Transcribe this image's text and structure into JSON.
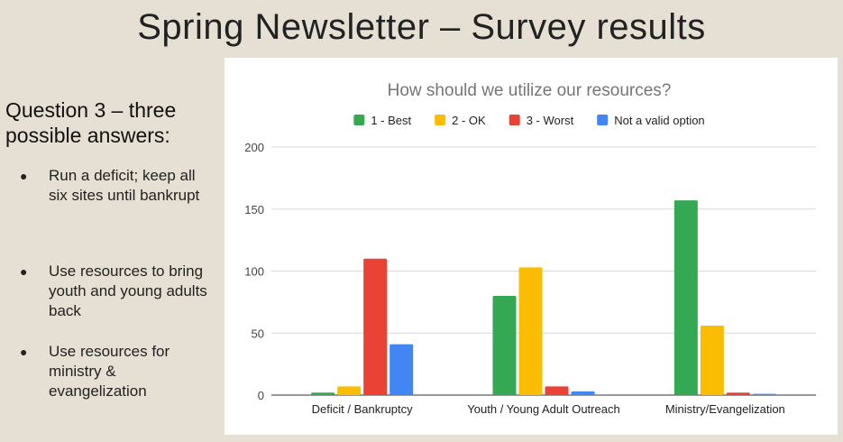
{
  "slide": {
    "title": "Spring Newsletter – Survey results",
    "question": "Question 3 – three possible answers:",
    "bullets": [
      "Run a deficit; keep all six sites until bankrupt",
      "Use resources to bring youth and young adults back",
      "Use resources for ministry & evangelization"
    ]
  },
  "chart_data": {
    "type": "bar",
    "title": "How should we utilize our resources?",
    "xlabel": "",
    "ylabel": "",
    "categories": [
      "Deficit / Bankruptcy",
      "Youth / Young Adult Outreach",
      "Ministry/Evangelization"
    ],
    "series": [
      {
        "name": "1 - Best",
        "color": "#34a853",
        "values": [
          2,
          80,
          157
        ]
      },
      {
        "name": "2 - OK",
        "color": "#fbbc04",
        "values": [
          7,
          103,
          56
        ]
      },
      {
        "name": "3 - Worst",
        "color": "#ea4335",
        "values": [
          110,
          7,
          2
        ]
      },
      {
        "name": "Not a valid option",
        "color": "#4285f4",
        "values": [
          41,
          3,
          1
        ]
      }
    ],
    "yticks": [
      0,
      50,
      100,
      150,
      200
    ],
    "ylim": [
      0,
      200
    ],
    "grid": true,
    "legend": "top"
  }
}
